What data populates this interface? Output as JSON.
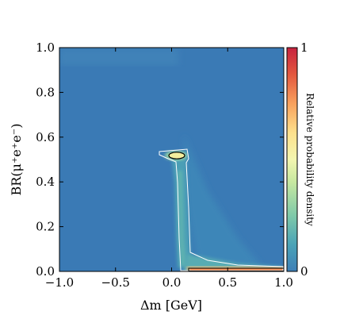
{
  "chart_data": {
    "type": "heatmap",
    "title": "",
    "xlabel": "Δm [GeV]",
    "ylabel": "BR(μ⁺e⁺e⁻)",
    "xlim": [
      -1.0,
      1.0
    ],
    "ylim": [
      0.0,
      1.0
    ],
    "x_ticks": [
      "−1.0",
      "−0.5",
      "0.0",
      "0.5",
      "1.0"
    ],
    "y_ticks": [
      "0.0",
      "0.2",
      "0.4",
      "0.6",
      "0.8",
      "1.0"
    ],
    "x_tick_values": [
      -1.0,
      -0.5,
      0.0,
      0.5,
      1.0
    ],
    "y_tick_values": [
      0.0,
      0.2,
      0.4,
      0.6,
      0.8,
      1.0
    ],
    "colorbar": {
      "label": "Relative probability density",
      "ticks": [
        "0",
        "1"
      ],
      "range": [
        0,
        1
      ],
      "colormap": [
        "#3e7fb7",
        "#4aa3b7",
        "#7fc9a9",
        "#c7e8a0",
        "#f3f6b0",
        "#fde08c",
        "#f8a15d",
        "#e3583f",
        "#c7233f"
      ]
    },
    "background_density_color": "#3a7ab5",
    "features": [
      {
        "name": "narrow band",
        "x": [
          0.0,
          0.13
        ],
        "y": [
          0.0,
          0.53
        ],
        "density": 0.18
      },
      {
        "name": "peak",
        "x": [
          0.05,
          0.22
        ],
        "y": [
          0.5,
          0.55
        ],
        "density": 0.95
      },
      {
        "name": "low-BR ridge",
        "x": [
          0.15,
          1.0
        ],
        "y": [
          0.0,
          0.012
        ],
        "density": 1.0
      },
      {
        "name": "tail",
        "x": [
          0.12,
          0.95
        ],
        "y": [
          0.0,
          0.12
        ],
        "density": 0.12
      }
    ]
  }
}
